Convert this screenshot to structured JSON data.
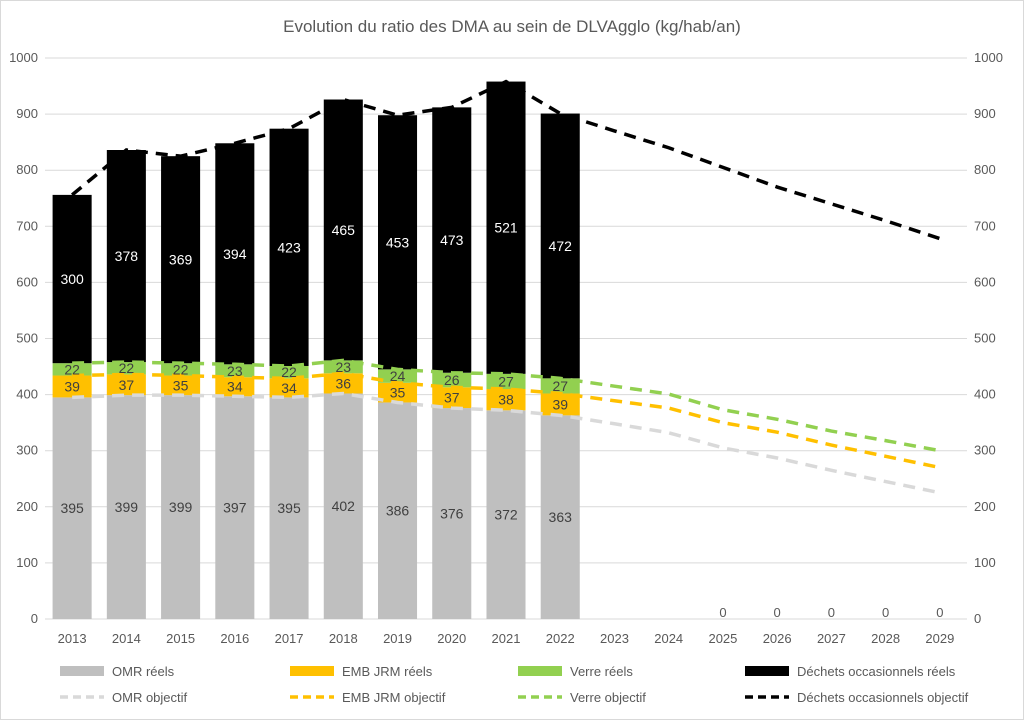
{
  "chart_data": {
    "type": "bar",
    "title": "Evolution du ratio des DMA au sein de DLVAgglo (kg/hab/an)",
    "categories": [
      "2013",
      "2014",
      "2015",
      "2016",
      "2017",
      "2018",
      "2019",
      "2020",
      "2021",
      "2022",
      "2023",
      "2024",
      "2025",
      "2026",
      "2027",
      "2028",
      "2029"
    ],
    "ylim": [
      0,
      1000
    ],
    "yticks": [
      0,
      100,
      200,
      300,
      400,
      500,
      600,
      700,
      800,
      900,
      1000
    ],
    "secondary_y_axis": true,
    "grid": true,
    "legend_position": "bottom",
    "stacked": true,
    "bar_series": [
      {
        "name": "OMR réels",
        "color": "#bfbfbf",
        "label_color": "#404040",
        "values": [
          395,
          399,
          399,
          397,
          395,
          402,
          386,
          376,
          372,
          363,
          null,
          null,
          null,
          null,
          null,
          null,
          null
        ]
      },
      {
        "name": "EMB JRM réels",
        "color": "#ffc000",
        "label_color": "#404040",
        "values": [
          39,
          37,
          35,
          34,
          34,
          36,
          35,
          37,
          38,
          39,
          null,
          null,
          null,
          null,
          null,
          null,
          null
        ]
      },
      {
        "name": "Verre réels",
        "color": "#92d050",
        "label_color": "#404040",
        "values": [
          22,
          22,
          22,
          23,
          22,
          23,
          24,
          26,
          27,
          27,
          null,
          null,
          null,
          null,
          null,
          null,
          null
        ]
      },
      {
        "name": "Déchets occasionnels réels",
        "color": "#000000",
        "label_color": "#ffffff",
        "values": [
          300,
          378,
          369,
          394,
          423,
          465,
          453,
          473,
          521,
          472,
          null,
          null,
          null,
          null,
          null,
          null,
          null
        ]
      }
    ],
    "line_series": [
      {
        "name": "OMR objectif",
        "color": "#d9d9d9",
        "values": [
          395,
          399,
          399,
          397,
          395,
          402,
          386,
          376,
          372,
          363,
          348,
          332,
          305,
          287,
          265,
          245,
          225
        ]
      },
      {
        "name": "EMB JRM objectif",
        "color": "#ffc000",
        "values": [
          434,
          436,
          434,
          431,
          429,
          438,
          421,
          413,
          410,
          402,
          389,
          376,
          350,
          333,
          310,
          290,
          270
        ]
      },
      {
        "name": "Verre objectif",
        "color": "#92d050",
        "values": [
          456,
          458,
          456,
          454,
          451,
          461,
          445,
          439,
          437,
          429,
          415,
          401,
          373,
          356,
          335,
          318,
          300
        ]
      },
      {
        "name": "Déchets occasionnels objectif",
        "color": "#000000",
        "values": [
          756,
          836,
          825,
          848,
          874,
          926,
          898,
          912,
          958,
          901,
          870,
          840,
          805,
          770,
          740,
          710,
          678
        ]
      }
    ],
    "zero_labels": [
      {
        "category": "2025",
        "value": "0"
      },
      {
        "category": "2026",
        "value": "0"
      },
      {
        "category": "2027",
        "value": "0"
      },
      {
        "category": "2028",
        "value": "0"
      },
      {
        "category": "2029",
        "value": "0"
      }
    ]
  }
}
